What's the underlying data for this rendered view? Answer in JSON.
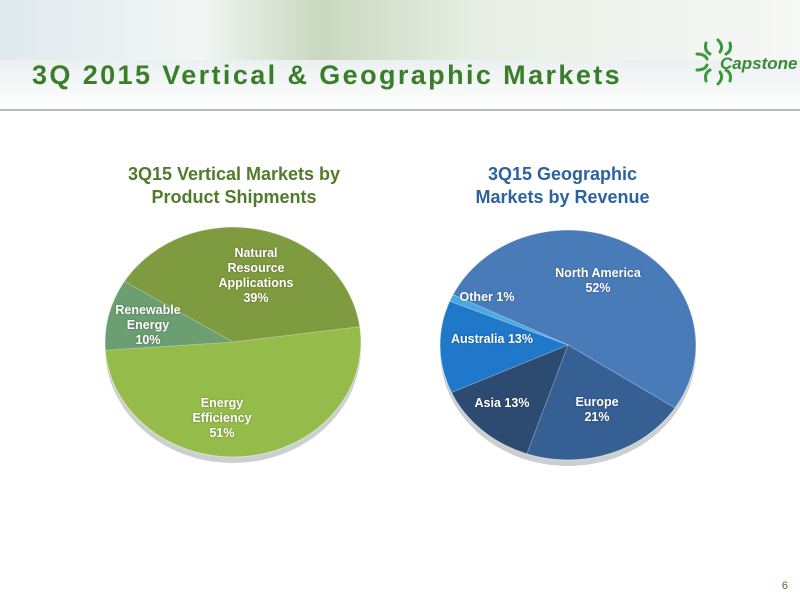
{
  "title": "3Q 2015 Vertical & Geographic Markets",
  "logo": "Capstone",
  "page_number": "6",
  "chart_data": [
    {
      "type": "pie",
      "title": "3Q15 Vertical Markets by Product Shipments",
      "categories": [
        "Energy Efficiency",
        "Renewable Energy",
        "Natural Resource Applications"
      ],
      "values": [
        51,
        10,
        39
      ],
      "value_labels": [
        "51%",
        "10%",
        "39%"
      ],
      "colors": [
        "#95bc4b",
        "#6b9e70",
        "#7f9b3f"
      ]
    },
    {
      "type": "pie",
      "title": "3Q15 Geographic Markets by Revenue",
      "categories": [
        "North America",
        "Europe",
        "Asia",
        "Australia",
        "Other"
      ],
      "values": [
        52,
        21,
        13,
        13,
        1
      ],
      "value_labels": [
        "52%",
        "21%",
        "13%",
        "13%",
        "1%"
      ],
      "colors": [
        "#4a7bb9",
        "#365f94",
        "#2d4a70",
        "#1f78c9",
        "#4aa9e2"
      ]
    }
  ]
}
